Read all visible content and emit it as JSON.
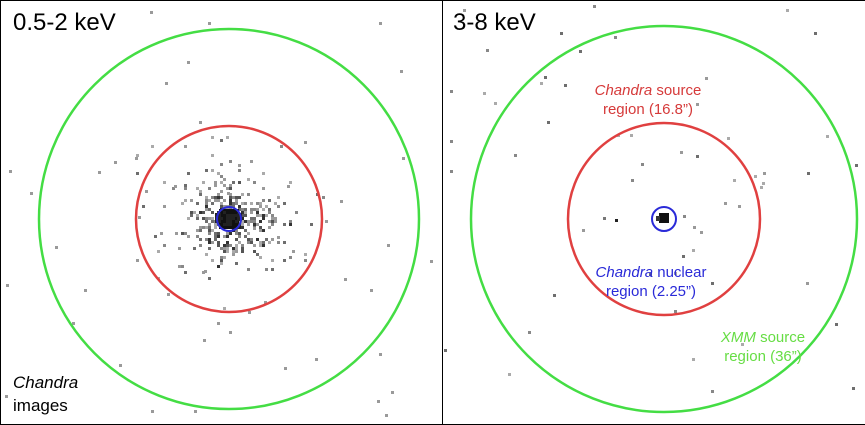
{
  "left_panel": {
    "band": "0.5-2 keV",
    "caption_italic": "Chandra",
    "caption_plain": "images"
  },
  "right_panel": {
    "band": "3-8 keV",
    "chandra_source": {
      "italic": "Chandra",
      "plain": "source",
      "line2": "region (16.8”)"
    },
    "chandra_nuclear": {
      "italic": "Chandra",
      "plain": "nuclear",
      "line2": "region (2.25”)"
    },
    "xmm_source": {
      "italic": "XMM",
      "plain": "source",
      "line2": "region (36”)"
    }
  },
  "colors": {
    "xmm_circle": "#44dd44",
    "chandra_source_circle": "#e04040",
    "chandra_nuclear_circle": "#2a2ad8",
    "pixels": "#333333"
  }
}
